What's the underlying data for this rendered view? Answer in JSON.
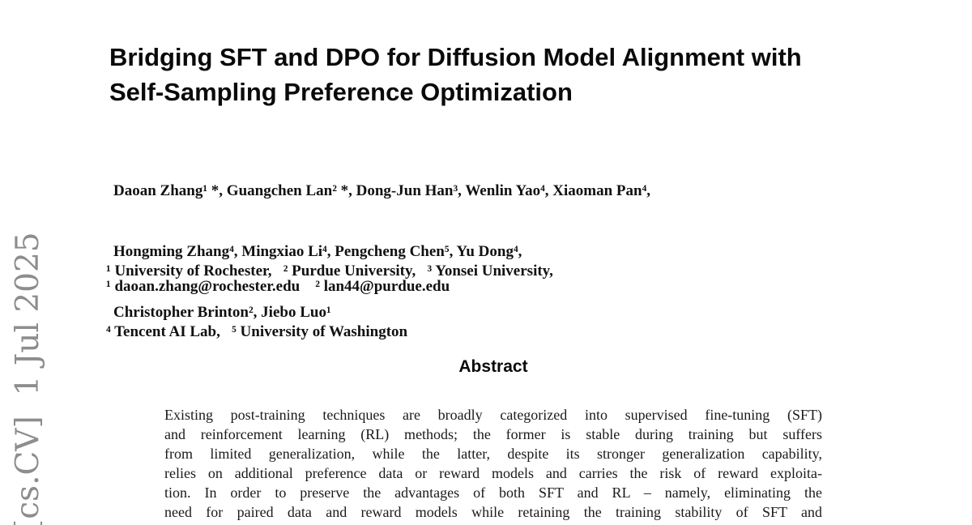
{
  "page": {
    "background": "#ffffff",
    "text_color": "#111111"
  },
  "watermark": {
    "text": "[cs.CV]  1 Jul 2025",
    "color": "#8d8d8d"
  },
  "title": {
    "lines": [
      "Bridging SFT and DPO for Diffusion Model Alignment with",
      "Self-Sampling Preference Optimization"
    ]
  },
  "authors": {
    "lines": [
      "Daoan Zhang¹ *, Guangchen Lan² *, Dong-Jun Han³, Wenlin Yao⁴, Xiaoman Pan⁴,",
      "Hongming Zhang⁴, Mingxiao Li⁴, Pengcheng Chen⁵, Yu Dong⁴,",
      "Christopher Brinton², Jiebo Luo¹"
    ]
  },
  "affiliations": {
    "lines": [
      "¹ University of Rochester,   ² Purdue University,   ³ Yonsei University,",
      "⁴ Tencent AI Lab,   ⁵ University of Washington"
    ]
  },
  "contacts": {
    "line": "¹ daoan.zhang@rochester.edu    ² lan44@purdue.edu"
  },
  "abstract": {
    "heading": "Abstract",
    "lines": [
      "Existing post-training techniques are broadly categorized into supervised fine-tuning (SFT)",
      "and reinforcement learning (RL) methods; the former is stable during training but suffers",
      "from limited generalization, while the latter, despite its stronger generalization capability,",
      "relies on additional preference data or reward models and carries the risk of reward exploita-",
      "tion.  In order to preserve the advantages of both SFT and RL – namely, eliminating the",
      "need for paired data and reward models while retaining the training stability of SFT and"
    ]
  }
}
